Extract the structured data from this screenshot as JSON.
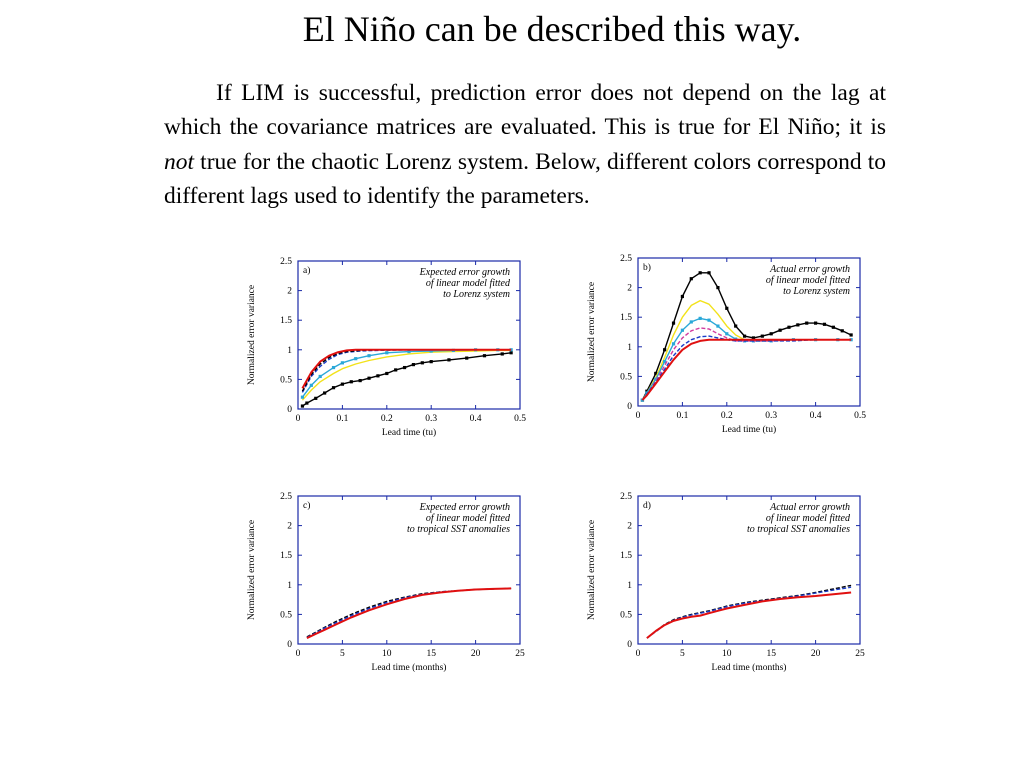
{
  "title": "El Niño can be described this way.",
  "paragraph": {
    "part1": "If LIM is successful, prediction error does not depend on the lag at which the covariance matrices are evaluated.  This is true for El Niño; it is ",
    "emph": "not",
    "part2": " true for the chaotic Lorenz system. Below, different colors correspond to different lags used to identify the parameters."
  },
  "colors": {
    "black": "#000000",
    "red": "#e01010",
    "blue": "#1a3cc8",
    "cyan": "#2aa8d8",
    "yellow": "#f2e21a",
    "magenta": "#d23ca0",
    "axis_box": "#1a2aa8"
  },
  "chart_data": [
    {
      "id": "a",
      "type": "line",
      "panel_label": "a)",
      "annotation": [
        "Expected error growth",
        "of linear model fitted",
        "to Lorenz system"
      ],
      "xlabel": "Lead time (tu)",
      "ylabel": "Normalized error variance",
      "xlim": [
        0,
        0.5
      ],
      "ylim": [
        0,
        2.5
      ],
      "xticks": [
        "0",
        "0.1",
        "0.2",
        "0.3",
        "0.4",
        "0.5"
      ],
      "yticks": [
        "0",
        "0.5",
        "1",
        "1.5",
        "2",
        "2.5"
      ],
      "series": [
        {
          "color": "black",
          "markers": true,
          "x": [
            0.01,
            0.02,
            0.04,
            0.06,
            0.08,
            0.1,
            0.12,
            0.14,
            0.16,
            0.18,
            0.2,
            0.22,
            0.24,
            0.26,
            0.28,
            0.3,
            0.34,
            0.38,
            0.42,
            0.46,
            0.48
          ],
          "y": [
            0.05,
            0.1,
            0.18,
            0.27,
            0.36,
            0.42,
            0.46,
            0.48,
            0.52,
            0.56,
            0.6,
            0.66,
            0.7,
            0.75,
            0.78,
            0.8,
            0.83,
            0.86,
            0.9,
            0.93,
            0.95
          ]
        },
        {
          "color": "yellow",
          "x": [
            0.01,
            0.03,
            0.05,
            0.08,
            0.1,
            0.13,
            0.16,
            0.2,
            0.25,
            0.3,
            0.35,
            0.4,
            0.45,
            0.48
          ],
          "y": [
            0.15,
            0.32,
            0.46,
            0.6,
            0.68,
            0.76,
            0.82,
            0.88,
            0.93,
            0.96,
            0.97,
            0.98,
            0.99,
            0.99
          ]
        },
        {
          "color": "cyan",
          "markers": true,
          "x": [
            0.01,
            0.03,
            0.05,
            0.08,
            0.1,
            0.13,
            0.16,
            0.2,
            0.25,
            0.3,
            0.35,
            0.4,
            0.45,
            0.48
          ],
          "y": [
            0.2,
            0.4,
            0.55,
            0.7,
            0.78,
            0.85,
            0.9,
            0.95,
            0.97,
            0.98,
            0.99,
            1.0,
            1.0,
            1.0
          ]
        },
        {
          "color": "blue",
          "dashed": true,
          "x": [
            0.01,
            0.03,
            0.05,
            0.07,
            0.09,
            0.11,
            0.14,
            0.18,
            0.25,
            0.3,
            0.4,
            0.48
          ],
          "y": [
            0.28,
            0.55,
            0.72,
            0.84,
            0.92,
            0.96,
            0.98,
            0.99,
            1.0,
            1.0,
            1.0,
            1.0
          ]
        },
        {
          "color": "black",
          "dashed": true,
          "x": [
            0.01,
            0.03,
            0.05,
            0.07,
            0.09,
            0.11,
            0.14,
            0.18,
            0.25,
            0.3,
            0.4,
            0.48
          ],
          "y": [
            0.3,
            0.58,
            0.76,
            0.87,
            0.94,
            0.97,
            0.99,
            1.0,
            1.0,
            1.0,
            1.0,
            1.0
          ]
        },
        {
          "color": "red",
          "x": [
            0.01,
            0.03,
            0.05,
            0.07,
            0.09,
            0.11,
            0.13,
            0.16,
            0.2,
            0.25,
            0.3,
            0.4,
            0.48
          ],
          "y": [
            0.35,
            0.62,
            0.8,
            0.9,
            0.96,
            0.99,
            1.0,
            1.0,
            1.0,
            1.0,
            1.0,
            1.0,
            1.0
          ]
        }
      ]
    },
    {
      "id": "b",
      "type": "line",
      "panel_label": "b)",
      "annotation": [
        "Actual error growth",
        "of linear model fitted",
        "to Lorenz system"
      ],
      "xlabel": "Lead time (tu)",
      "ylabel": "Normalized error variance",
      "xlim": [
        0,
        0.5
      ],
      "ylim": [
        0,
        2.5
      ],
      "xticks": [
        "0",
        "0.1",
        "0.2",
        "0.3",
        "0.4",
        "0.5"
      ],
      "yticks": [
        "0",
        "0.5",
        "1",
        "1.5",
        "2",
        "2.5"
      ],
      "series": [
        {
          "color": "black",
          "markers": true,
          "x": [
            0.01,
            0.02,
            0.04,
            0.06,
            0.08,
            0.1,
            0.12,
            0.14,
            0.16,
            0.18,
            0.2,
            0.22,
            0.24,
            0.26,
            0.28,
            0.3,
            0.32,
            0.34,
            0.36,
            0.38,
            0.4,
            0.42,
            0.44,
            0.46,
            0.48
          ],
          "y": [
            0.1,
            0.25,
            0.55,
            0.95,
            1.4,
            1.85,
            2.15,
            2.25,
            2.25,
            2.0,
            1.65,
            1.35,
            1.18,
            1.15,
            1.18,
            1.22,
            1.28,
            1.33,
            1.37,
            1.4,
            1.4,
            1.38,
            1.33,
            1.27,
            1.2
          ]
        },
        {
          "color": "yellow",
          "x": [
            0.01,
            0.02,
            0.04,
            0.06,
            0.08,
            0.1,
            0.12,
            0.14,
            0.16,
            0.18,
            0.2,
            0.22,
            0.24,
            0.26,
            0.3,
            0.35,
            0.4,
            0.45,
            0.48
          ],
          "y": [
            0.1,
            0.22,
            0.48,
            0.82,
            1.2,
            1.5,
            1.7,
            1.78,
            1.72,
            1.55,
            1.35,
            1.2,
            1.12,
            1.1,
            1.1,
            1.12,
            1.12,
            1.12,
            1.12
          ]
        },
        {
          "color": "cyan",
          "markers": true,
          "x": [
            0.01,
            0.02,
            0.04,
            0.06,
            0.08,
            0.1,
            0.12,
            0.14,
            0.16,
            0.18,
            0.2,
            0.22,
            0.24,
            0.26,
            0.3,
            0.35,
            0.4,
            0.45,
            0.48
          ],
          "y": [
            0.1,
            0.22,
            0.45,
            0.75,
            1.05,
            1.28,
            1.42,
            1.48,
            1.45,
            1.35,
            1.22,
            1.13,
            1.1,
            1.1,
            1.1,
            1.12,
            1.12,
            1.12,
            1.12
          ]
        },
        {
          "color": "magenta",
          "dashed": true,
          "x": [
            0.01,
            0.02,
            0.04,
            0.06,
            0.08,
            0.1,
            0.12,
            0.14,
            0.16,
            0.18,
            0.2,
            0.22,
            0.24,
            0.3,
            0.35,
            0.4,
            0.45,
            0.48
          ],
          "y": [
            0.1,
            0.2,
            0.42,
            0.68,
            0.95,
            1.15,
            1.27,
            1.32,
            1.3,
            1.22,
            1.15,
            1.1,
            1.1,
            1.1,
            1.12,
            1.12,
            1.12,
            1.12
          ]
        },
        {
          "color": "blue",
          "dashed": true,
          "x": [
            0.01,
            0.02,
            0.04,
            0.06,
            0.08,
            0.1,
            0.12,
            0.14,
            0.16,
            0.18,
            0.2,
            0.22,
            0.24,
            0.3,
            0.35,
            0.4,
            0.45,
            0.48
          ],
          "y": [
            0.1,
            0.2,
            0.4,
            0.62,
            0.85,
            1.02,
            1.12,
            1.17,
            1.18,
            1.15,
            1.12,
            1.1,
            1.1,
            1.1,
            1.1,
            1.12,
            1.12,
            1.12
          ]
        },
        {
          "color": "red",
          "x": [
            0.01,
            0.02,
            0.04,
            0.06,
            0.08,
            0.1,
            0.12,
            0.14,
            0.16,
            0.18,
            0.2,
            0.25,
            0.3,
            0.35,
            0.4,
            0.45,
            0.48
          ],
          "y": [
            0.1,
            0.18,
            0.38,
            0.58,
            0.78,
            0.95,
            1.05,
            1.1,
            1.12,
            1.12,
            1.12,
            1.12,
            1.12,
            1.12,
            1.12,
            1.12,
            1.12
          ]
        }
      ]
    },
    {
      "id": "c",
      "type": "line",
      "panel_label": "c)",
      "annotation": [
        "Expected error growth",
        "of linear model fitted",
        "to tropical SST anomalies"
      ],
      "xlabel": "Lead time (months)",
      "ylabel": "Normalized error variance",
      "xlim": [
        0,
        25
      ],
      "ylim": [
        0,
        2.5
      ],
      "xticks": [
        "0",
        "5",
        "10",
        "15",
        "20",
        "25"
      ],
      "yticks": [
        "0",
        "0.5",
        "1",
        "1.5",
        "2",
        "2.5"
      ],
      "series": [
        {
          "color": "black",
          "dashed": true,
          "x": [
            1,
            2,
            3,
            4,
            5,
            6,
            7,
            8,
            9,
            10,
            12,
            14,
            16,
            18,
            20,
            22,
            24
          ],
          "y": [
            0.12,
            0.2,
            0.28,
            0.36,
            0.43,
            0.5,
            0.56,
            0.62,
            0.67,
            0.72,
            0.79,
            0.85,
            0.88,
            0.9,
            0.92,
            0.93,
            0.94
          ]
        },
        {
          "color": "blue",
          "dashed": true,
          "x": [
            1,
            2,
            3,
            4,
            5,
            6,
            7,
            8,
            9,
            10,
            12,
            14,
            16,
            18,
            20,
            22,
            24
          ],
          "y": [
            0.11,
            0.19,
            0.27,
            0.34,
            0.41,
            0.48,
            0.54,
            0.6,
            0.65,
            0.7,
            0.78,
            0.84,
            0.88,
            0.9,
            0.92,
            0.93,
            0.94
          ]
        },
        {
          "color": "red",
          "x": [
            1,
            2,
            3,
            4,
            5,
            6,
            7,
            8,
            9,
            10,
            12,
            14,
            16,
            18,
            20,
            22,
            24
          ],
          "y": [
            0.1,
            0.17,
            0.24,
            0.31,
            0.38,
            0.45,
            0.51,
            0.57,
            0.62,
            0.67,
            0.76,
            0.83,
            0.87,
            0.9,
            0.92,
            0.93,
            0.94
          ]
        }
      ]
    },
    {
      "id": "d",
      "type": "line",
      "panel_label": "d)",
      "annotation": [
        "Actual error growth",
        "of linear model fitted",
        "to tropical SST anomalies"
      ],
      "xlabel": "Lead time (months)",
      "ylabel": "Normalized error variance",
      "xlim": [
        0,
        25
      ],
      "ylim": [
        0,
        2.5
      ],
      "xticks": [
        "0",
        "5",
        "10",
        "15",
        "20",
        "25"
      ],
      "yticks": [
        "0",
        "0.5",
        "1",
        "1.5",
        "2",
        "2.5"
      ],
      "series": [
        {
          "color": "black",
          "dashed": true,
          "x": [
            1,
            2,
            3,
            4,
            5,
            6,
            7,
            8,
            9,
            10,
            12,
            14,
            16,
            18,
            20,
            22,
            24
          ],
          "y": [
            0.1,
            0.22,
            0.33,
            0.41,
            0.46,
            0.5,
            0.53,
            0.56,
            0.6,
            0.64,
            0.7,
            0.74,
            0.78,
            0.82,
            0.87,
            0.93,
            0.99
          ]
        },
        {
          "color": "blue",
          "dashed": true,
          "x": [
            1,
            2,
            3,
            4,
            5,
            6,
            7,
            8,
            9,
            10,
            12,
            14,
            16,
            18,
            20,
            22,
            24
          ],
          "y": [
            0.1,
            0.21,
            0.32,
            0.4,
            0.45,
            0.49,
            0.52,
            0.55,
            0.59,
            0.63,
            0.69,
            0.73,
            0.77,
            0.81,
            0.86,
            0.91,
            0.96
          ]
        },
        {
          "color": "red",
          "x": [
            1,
            2,
            3,
            4,
            5,
            6,
            7,
            8,
            9,
            10,
            12,
            14,
            16,
            18,
            20,
            22,
            24
          ],
          "y": [
            0.1,
            0.22,
            0.32,
            0.39,
            0.43,
            0.46,
            0.48,
            0.52,
            0.56,
            0.6,
            0.66,
            0.72,
            0.76,
            0.79,
            0.81,
            0.84,
            0.87
          ]
        }
      ]
    }
  ]
}
